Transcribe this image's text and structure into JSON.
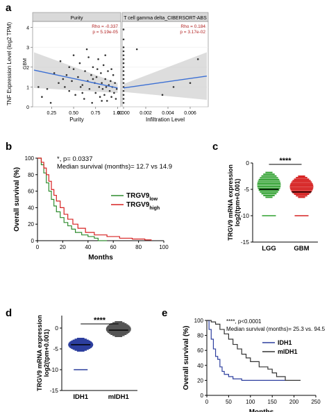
{
  "panels": {
    "a": "a",
    "b": "b",
    "c": "c",
    "d": "d",
    "e": "e"
  },
  "chart_data": [
    {
      "id": "a",
      "type": "scatter",
      "ylabel": "TNF Expression Level (log2 TPM)",
      "row_label": "GBM",
      "facets": [
        {
          "title": "Purity",
          "xlabel": "Purity",
          "xticks": [
            "0.25",
            "0.50",
            "0.75",
            "1.00"
          ],
          "xlim": [
            0.05,
            1.02
          ],
          "ylim": [
            0,
            4.3
          ],
          "yticks": [
            "0",
            "1",
            "2",
            "3",
            "4"
          ],
          "stats": {
            "rho": "Rho = -0.337",
            "p": "p = 5.19e-05"
          },
          "trend": {
            "x": [
              0.05,
              1.0
            ],
            "y": [
              1.85,
              0.95
            ]
          },
          "points": [
            [
              0.1,
              1.0
            ],
            [
              0.14,
              0.5
            ],
            [
              0.2,
              0.9
            ],
            [
              0.24,
              0.2
            ],
            [
              0.28,
              1.7
            ],
            [
              0.33,
              1.2
            ],
            [
              0.35,
              2.3
            ],
            [
              0.4,
              1.0
            ],
            [
              0.42,
              1.6
            ],
            [
              0.45,
              0.8
            ],
            [
              0.48,
              1.3
            ],
            [
              0.5,
              2.6
            ],
            [
              0.52,
              0.6
            ],
            [
              0.55,
              1.5
            ],
            [
              0.57,
              2.2
            ],
            [
              0.6,
              1.1
            ],
            [
              0.62,
              0.4
            ],
            [
              0.63,
              1.8
            ],
            [
              0.65,
              2.9
            ],
            [
              0.66,
              1.3
            ],
            [
              0.68,
              0.9
            ],
            [
              0.7,
              1.6
            ],
            [
              0.71,
              0.2
            ],
            [
              0.72,
              2.0
            ],
            [
              0.74,
              1.2
            ],
            [
              0.75,
              0.7
            ],
            [
              0.76,
              1.5
            ],
            [
              0.78,
              2.4
            ],
            [
              0.79,
              1.0
            ],
            [
              0.8,
              0.5
            ],
            [
              0.81,
              1.7
            ],
            [
              0.82,
              1.2
            ],
            [
              0.83,
              0.9
            ],
            [
              0.84,
              2.1
            ],
            [
              0.85,
              0.6
            ],
            [
              0.86,
              1.4
            ],
            [
              0.87,
              1.0
            ],
            [
              0.88,
              0.3
            ],
            [
              0.89,
              1.8
            ],
            [
              0.9,
              1.1
            ],
            [
              0.91,
              0.8
            ],
            [
              0.92,
              1.3
            ],
            [
              0.93,
              0.5
            ],
            [
              0.94,
              1.0
            ],
            [
              0.95,
              1.6
            ],
            [
              0.96,
              0.7
            ],
            [
              0.97,
              1.2
            ],
            [
              0.98,
              0.4
            ],
            [
              0.99,
              0.9
            ],
            [
              0.72,
              1.4
            ],
            [
              0.6,
              0.7
            ],
            [
              0.5,
              1.9
            ],
            [
              0.45,
              2.0
            ],
            [
              0.38,
              1.4
            ],
            [
              0.67,
              2.5
            ],
            [
              0.77,
              1.9
            ],
            [
              0.86,
              2.6
            ],
            [
              0.93,
              1.9
            ],
            [
              0.58,
              1.0
            ],
            [
              0.82,
              0.3
            ]
          ]
        },
        {
          "title": "T cell gamma delta_CIBERSORT-ABS",
          "xlabel": "Infiltration Level",
          "xticks": [
            "0.000",
            "0.002",
            "0.004",
            "0.006"
          ],
          "xlim": [
            0,
            0.0075
          ],
          "ylim": [
            0,
            4.3
          ],
          "stats": {
            "rho": "Rho = 0.184",
            "p": "p = 3.17e-02"
          },
          "trend": {
            "x": [
              0,
              0.0075
            ],
            "y": [
              0.95,
              1.55
            ]
          },
          "points": [
            [
              0,
              0.2
            ],
            [
              0,
              0.4
            ],
            [
              0,
              0.6
            ],
            [
              0,
              0.8
            ],
            [
              0,
              1.0
            ],
            [
              0,
              1.2
            ],
            [
              0,
              1.4
            ],
            [
              0,
              1.6
            ],
            [
              0,
              1.8
            ],
            [
              0,
              2.0
            ],
            [
              0,
              2.2
            ],
            [
              0,
              2.4
            ],
            [
              0,
              2.6
            ],
            [
              0,
              2.8
            ],
            [
              0,
              3.0
            ],
            [
              0,
              3.4
            ],
            [
              0,
              3.9
            ],
            [
              0.0012,
              2.9
            ],
            [
              0.0035,
              0.6
            ],
            [
              0.0045,
              1.0
            ],
            [
              0.006,
              1.2
            ],
            [
              0.0067,
              2.4
            ]
          ]
        }
      ]
    },
    {
      "id": "b",
      "type": "line",
      "ylabel": "Overall survival (%)",
      "xlabel": "Months",
      "xlim": [
        0,
        100
      ],
      "ylim": [
        0,
        100
      ],
      "xticks": [
        "0",
        "20",
        "40",
        "60",
        "80",
        "100"
      ],
      "yticks": [
        "0",
        "20",
        "40",
        "60",
        "80",
        "100"
      ],
      "annotation_p": "*, p= 0.0337",
      "annotation_median": "Median survival (months)= 12.7 vs 14.9",
      "series": [
        {
          "name": "TRGV9",
          "sub": "low",
          "color": "#2e8b2e",
          "x": [
            0,
            3,
            5,
            7,
            9,
            11,
            13,
            15,
            18,
            21,
            24,
            27,
            30,
            35,
            40,
            45,
            48,
            55
          ],
          "y": [
            100,
            92,
            82,
            70,
            60,
            50,
            42,
            35,
            28,
            22,
            18,
            14,
            10,
            7,
            5,
            3,
            0,
            0
          ]
        },
        {
          "name": "TRGV9",
          "sub": "high",
          "color": "#d62020",
          "x": [
            0,
            3,
            5,
            7,
            9,
            11,
            13,
            15,
            18,
            21,
            24,
            28,
            32,
            38,
            45,
            55,
            65,
            75,
            85,
            90
          ],
          "y": [
            100,
            95,
            88,
            80,
            72,
            62,
            55,
            48,
            40,
            32,
            26,
            20,
            15,
            10,
            7,
            5,
            3,
            2,
            1,
            0
          ]
        }
      ]
    },
    {
      "id": "c",
      "type": "scatter",
      "ylabel": "TRGV9 mRNA expression log2(tpm+0.001)",
      "categories": [
        "LGG",
        "GBM"
      ],
      "ylim": [
        -15,
        0
      ],
      "yticks": [
        "0",
        "-5",
        "-10",
        "-15"
      ],
      "significance": "****",
      "series": [
        {
          "name": "LGG",
          "color": "#2ea02e",
          "median": -5.0,
          "floor": -10,
          "range": [
            -6.5,
            -1.8
          ]
        },
        {
          "name": "GBM",
          "color": "#d62020",
          "median": -5.5,
          "floor": -10,
          "range": [
            -6.5,
            -2.5
          ]
        }
      ]
    },
    {
      "id": "d",
      "type": "scatter",
      "ylabel": "TRGV9 mRNA expression log2(tpm+0.001)",
      "categories": [
        "IDH1",
        "mIDH1"
      ],
      "ylim": [
        -15,
        3
      ],
      "yticks": [
        "0",
        "-5",
        "-10",
        "-15"
      ],
      "significance": "****",
      "series": [
        {
          "name": "IDH1",
          "color": "#2c3e9e",
          "median": -4.0,
          "floor": -10,
          "range": [
            -5.5,
            -2.5
          ]
        },
        {
          "name": "mIDH1",
          "color": "#555555",
          "median": -0.5,
          "floor": null,
          "range": [
            -2.0,
            1.5
          ]
        }
      ]
    },
    {
      "id": "e",
      "type": "line",
      "ylabel": "Overall survival (%)",
      "xlabel": "Months",
      "xlim": [
        0,
        250
      ],
      "ylim": [
        0,
        100
      ],
      "xticks": [
        "0",
        "50",
        "100",
        "150",
        "200",
        "250"
      ],
      "yticks": [
        "0",
        "20",
        "40",
        "60",
        "80",
        "100"
      ],
      "annotation_p": "****, p<0.0001",
      "annotation_median": "Median survival  (months)= 25.3 vs. 94.5",
      "series": [
        {
          "name": "IDH1",
          "color": "#2c3e9e",
          "x": [
            0,
            5,
            10,
            15,
            20,
            25,
            30,
            35,
            40,
            50,
            60,
            80,
            100,
            150,
            180
          ],
          "y": [
            100,
            88,
            75,
            62,
            52,
            48,
            38,
            32,
            28,
            25,
            22,
            20,
            20,
            20,
            20
          ]
        },
        {
          "name": "mIDH1",
          "color": "#333333",
          "x": [
            0,
            10,
            20,
            30,
            40,
            50,
            60,
            70,
            80,
            90,
            100,
            120,
            140,
            150,
            160,
            180,
            200,
            215
          ],
          "y": [
            100,
            98,
            95,
            88,
            82,
            75,
            68,
            62,
            55,
            50,
            45,
            38,
            35,
            30,
            25,
            20,
            20,
            20
          ]
        }
      ]
    }
  ]
}
